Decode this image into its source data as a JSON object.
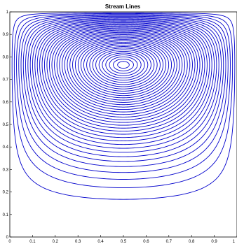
{
  "chart_data": {
    "type": "line",
    "title": "Stream Lines",
    "xlabel": "",
    "ylabel": "",
    "xlim": [
      0,
      1
    ],
    "ylim": [
      0,
      1
    ],
    "x_ticks": [
      "0",
      "0.1",
      "0.2",
      "0.3",
      "0.4",
      "0.5",
      "0.6",
      "0.7",
      "0.8",
      "0.9",
      "1"
    ],
    "y_ticks": [
      "0",
      "0.1",
      "0.2",
      "0.3",
      "0.4",
      "0.5",
      "0.6",
      "0.7",
      "0.8",
      "0.9",
      "1"
    ],
    "grid": false,
    "line_color": "#0000cc",
    "vortex_center": [
      0.5,
      0.765
    ],
    "num_streamlines": 40
  }
}
